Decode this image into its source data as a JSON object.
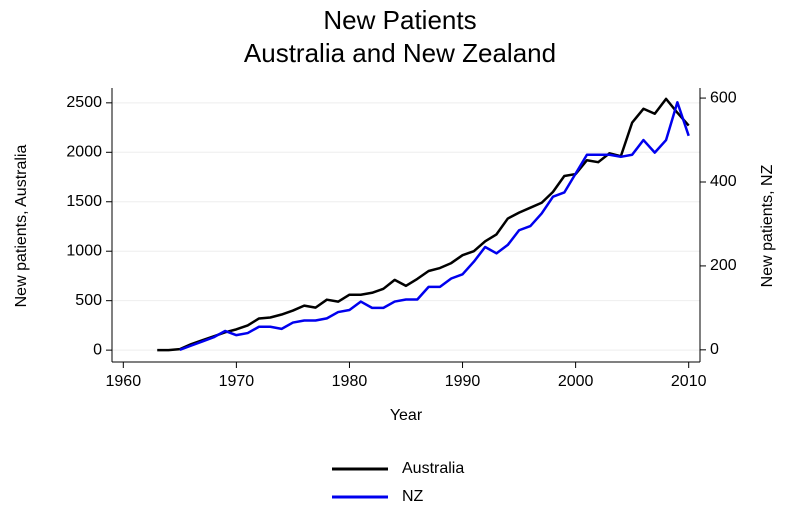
{
  "chart_data": {
    "type": "line",
    "title": "New Patients",
    "subtitle": "Australia and New Zealand",
    "xlabel": "Year",
    "ylabel": "New patients, Australia",
    "y2label": "New patients, NZ",
    "xlim": [
      1959,
      2011
    ],
    "xticks": [
      1960,
      1970,
      1980,
      1990,
      2000,
      2010
    ],
    "ylim": [
      -120,
      2650
    ],
    "yticks": [
      0,
      500,
      1000,
      1500,
      2000,
      2500
    ],
    "y2lim": [
      -29,
      624
    ],
    "y2ticks": [
      0,
      200,
      400,
      600
    ],
    "grid": true,
    "legend": "bottom",
    "series": [
      {
        "name": "Australia",
        "color": "#000000",
        "x": [
          1963,
          1964,
          1965,
          1966,
          1967,
          1968,
          1969,
          1970,
          1971,
          1972,
          1973,
          1974,
          1975,
          1976,
          1977,
          1978,
          1979,
          1980,
          1981,
          1982,
          1983,
          1984,
          1985,
          1986,
          1987,
          1988,
          1989,
          1990,
          1991,
          1992,
          1993,
          1994,
          1995,
          1996,
          1997,
          1998,
          1999,
          2000,
          2001,
          2002,
          2003,
          2004,
          2005,
          2006,
          2007,
          2008,
          2009,
          2010
        ],
        "values": [
          0,
          0,
          10,
          60,
          100,
          140,
          180,
          210,
          250,
          320,
          330,
          360,
          400,
          450,
          430,
          510,
          490,
          560,
          560,
          580,
          620,
          710,
          650,
          720,
          800,
          830,
          880,
          960,
          1000,
          1100,
          1170,
          1330,
          1390,
          1440,
          1490,
          1600,
          1760,
          1780,
          1920,
          1900,
          1990,
          1960,
          2300,
          2440,
          2390,
          2540,
          2400,
          2270
        ]
      },
      {
        "name": "NZ",
        "color": "#0000ee",
        "axis": "y2",
        "x": [
          1965,
          1966,
          1967,
          1968,
          1969,
          1970,
          1971,
          1972,
          1973,
          1974,
          1975,
          1976,
          1977,
          1978,
          1979,
          1980,
          1981,
          1982,
          1983,
          1984,
          1985,
          1986,
          1987,
          1988,
          1989,
          1990,
          1991,
          1992,
          1993,
          1994,
          1995,
          1996,
          1997,
          1998,
          1999,
          2000,
          2001,
          2002,
          2003,
          2004,
          2005,
          2006,
          2007,
          2008,
          2009,
          2010
        ],
        "values": [
          0,
          10,
          20,
          30,
          45,
          35,
          40,
          55,
          55,
          50,
          65,
          70,
          70,
          75,
          90,
          95,
          115,
          100,
          100,
          115,
          120,
          120,
          150,
          150,
          170,
          180,
          210,
          245,
          230,
          250,
          285,
          295,
          325,
          365,
          375,
          420,
          465,
          465,
          465,
          460,
          465,
          500,
          470,
          500,
          590,
          510
        ]
      }
    ]
  }
}
